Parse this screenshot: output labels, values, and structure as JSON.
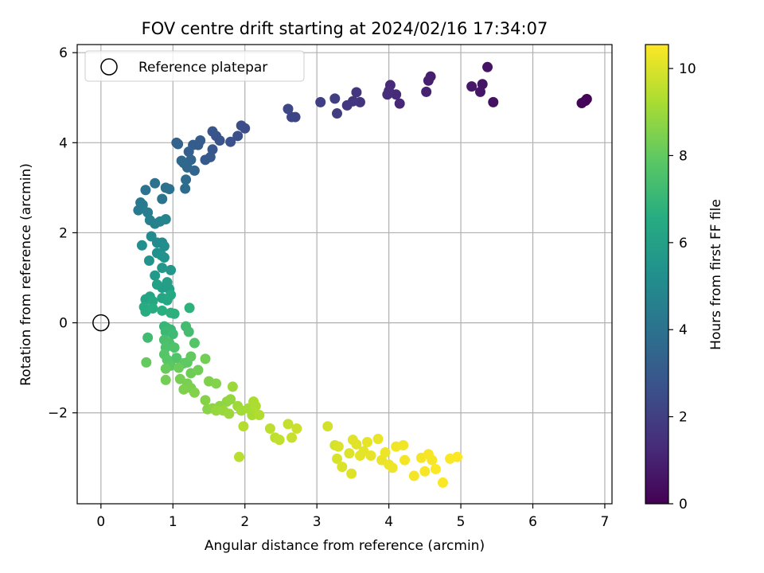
{
  "chart_data": {
    "type": "scatter",
    "title": "FOV centre drift starting at 2024/02/16 17:34:07",
    "xlabel": "Angular distance from reference (arcmin)",
    "ylabel": "Rotation from reference (arcmin)",
    "xlim": [
      -0.33,
      7.1
    ],
    "ylim": [
      -4.02,
      6.18
    ],
    "xticks": [
      0,
      1,
      2,
      3,
      4,
      5,
      6,
      7
    ],
    "yticks": [
      -2,
      0,
      2,
      4,
      6
    ],
    "grid": true,
    "legend": {
      "placement": "upper-left",
      "entries": [
        "Reference platepar"
      ]
    },
    "reference_point": {
      "x": 0,
      "y": 0,
      "label": "Reference platepar"
    },
    "colorbar": {
      "label": "Hours from first FF file",
      "colormap": "viridis",
      "range": [
        0,
        10.55
      ],
      "ticks": [
        0,
        2,
        4,
        6,
        8,
        10
      ]
    },
    "points": [
      [
        6.75,
        4.97,
        0.05
      ],
      [
        6.73,
        4.93,
        0.1
      ],
      [
        6.68,
        4.88,
        0.15
      ],
      [
        5.45,
        4.9,
        0.5
      ],
      [
        5.37,
        5.68,
        0.55
      ],
      [
        5.3,
        5.3,
        0.6
      ],
      [
        5.27,
        5.13,
        0.65
      ],
      [
        5.15,
        5.25,
        0.7
      ],
      [
        4.58,
        5.47,
        0.9
      ],
      [
        4.55,
        5.38,
        0.95
      ],
      [
        4.52,
        5.13,
        1.0
      ],
      [
        4.15,
        4.87,
        1.2
      ],
      [
        4.1,
        5.07,
        1.25
      ],
      [
        4.02,
        5.28,
        1.3
      ],
      [
        4.0,
        5.15,
        1.35
      ],
      [
        3.98,
        5.07,
        1.4
      ],
      [
        3.6,
        4.9,
        1.6
      ],
      [
        3.55,
        5.12,
        1.65
      ],
      [
        3.5,
        4.92,
        1.7
      ],
      [
        3.42,
        4.83,
        1.75
      ],
      [
        3.28,
        4.65,
        1.9
      ],
      [
        3.25,
        4.98,
        1.95
      ],
      [
        3.05,
        4.9,
        2.0
      ],
      [
        2.7,
        4.57,
        2.2
      ],
      [
        2.65,
        4.57,
        2.25
      ],
      [
        2.6,
        4.75,
        2.3
      ],
      [
        2.0,
        4.32,
        2.5
      ],
      [
        1.95,
        4.38,
        2.55
      ],
      [
        1.9,
        4.15,
        2.6
      ],
      [
        1.8,
        4.02,
        2.65
      ],
      [
        1.65,
        4.05,
        2.7
      ],
      [
        1.6,
        4.15,
        2.75
      ],
      [
        1.55,
        4.25,
        2.8
      ],
      [
        1.55,
        3.85,
        2.9
      ],
      [
        1.52,
        3.68,
        2.95
      ],
      [
        1.45,
        3.62,
        3.0
      ],
      [
        1.35,
        3.95,
        3.05
      ],
      [
        1.38,
        4.05,
        3.1
      ],
      [
        1.28,
        3.95,
        3.15
      ],
      [
        1.22,
        3.8,
        3.2
      ],
      [
        1.05,
        4.0,
        3.3
      ],
      [
        1.07,
        3.97,
        3.35
      ],
      [
        1.25,
        3.62,
        3.4
      ],
      [
        1.3,
        3.38,
        3.45
      ],
      [
        1.2,
        3.45,
        3.5
      ],
      [
        1.15,
        3.55,
        3.55
      ],
      [
        1.12,
        3.6,
        3.6
      ],
      [
        1.18,
        3.18,
        3.7
      ],
      [
        1.17,
        2.98,
        3.75
      ],
      [
        0.9,
        3.0,
        3.9
      ],
      [
        0.95,
        2.97,
        3.95
      ],
      [
        0.75,
        3.1,
        4.0
      ],
      [
        0.62,
        2.95,
        4.05
      ],
      [
        0.85,
        2.75,
        4.1
      ],
      [
        0.55,
        2.67,
        4.3
      ],
      [
        0.58,
        2.62,
        4.35
      ],
      [
        0.52,
        2.5,
        4.4
      ],
      [
        0.65,
        2.45,
        4.45
      ],
      [
        0.68,
        2.28,
        4.6
      ],
      [
        0.75,
        2.2,
        4.65
      ],
      [
        0.82,
        2.25,
        4.7
      ],
      [
        0.9,
        2.3,
        4.75
      ],
      [
        0.7,
        1.92,
        5.0
      ],
      [
        0.78,
        1.78,
        5.05
      ],
      [
        0.85,
        1.78,
        5.1
      ],
      [
        0.88,
        1.7,
        5.15
      ],
      [
        0.57,
        1.72,
        5.2
      ],
      [
        0.78,
        1.55,
        5.3
      ],
      [
        0.84,
        1.5,
        5.35
      ],
      [
        0.88,
        1.45,
        5.4
      ],
      [
        0.67,
        1.38,
        5.45
      ],
      [
        0.85,
        1.22,
        5.6
      ],
      [
        0.97,
        1.17,
        5.65
      ],
      [
        0.75,
        1.05,
        5.7
      ],
      [
        0.85,
        0.78,
        5.85
      ],
      [
        0.92,
        0.9,
        5.9
      ],
      [
        0.95,
        0.75,
        5.95
      ],
      [
        0.78,
        0.85,
        6.0
      ],
      [
        0.62,
        0.52,
        6.15
      ],
      [
        0.68,
        0.58,
        6.2
      ],
      [
        0.85,
        0.55,
        6.25
      ],
      [
        0.92,
        0.5,
        6.3
      ],
      [
        0.97,
        0.62,
        6.35
      ],
      [
        0.72,
        0.48,
        6.4
      ],
      [
        0.6,
        0.35,
        6.5
      ],
      [
        0.62,
        0.25,
        6.55
      ],
      [
        0.72,
        0.32,
        6.6
      ],
      [
        0.85,
        0.27,
        6.65
      ],
      [
        0.97,
        0.22,
        6.7
      ],
      [
        1.02,
        0.2,
        6.75
      ],
      [
        1.23,
        0.33,
        6.8
      ],
      [
        0.88,
        -0.08,
        7.0
      ],
      [
        0.92,
        -0.12,
        7.05
      ],
      [
        0.97,
        -0.15,
        7.1
      ],
      [
        0.9,
        -0.2,
        7.15
      ],
      [
        1.0,
        -0.25,
        7.2
      ],
      [
        0.65,
        -0.33,
        7.25
      ],
      [
        1.18,
        -0.08,
        7.3
      ],
      [
        1.22,
        -0.2,
        7.35
      ],
      [
        0.88,
        -0.38,
        7.45
      ],
      [
        0.95,
        -0.45,
        7.5
      ],
      [
        0.9,
        -0.55,
        7.55
      ],
      [
        1.02,
        -0.55,
        7.6
      ],
      [
        1.05,
        -0.78,
        7.65
      ],
      [
        1.3,
        -0.45,
        7.7
      ],
      [
        0.88,
        -0.7,
        7.75
      ],
      [
        0.92,
        -0.82,
        7.8
      ],
      [
        0.97,
        -0.95,
        7.85
      ],
      [
        1.15,
        -0.9,
        7.9
      ],
      [
        1.2,
        -0.88,
        7.95
      ],
      [
        1.25,
        -0.75,
        8.0
      ],
      [
        0.63,
        -0.88,
        8.05
      ],
      [
        0.9,
        -1.02,
        8.1
      ],
      [
        1.08,
        -1.0,
        8.15
      ],
      [
        1.25,
        -1.12,
        8.2
      ],
      [
        1.35,
        -1.05,
        8.25
      ],
      [
        1.45,
        -0.8,
        8.3
      ],
      [
        0.9,
        -1.27,
        8.3
      ],
      [
        1.1,
        -1.25,
        8.35
      ],
      [
        1.2,
        -1.35,
        8.4
      ],
      [
        1.25,
        -1.45,
        8.45
      ],
      [
        1.15,
        -1.48,
        8.5
      ],
      [
        1.3,
        -1.55,
        8.55
      ],
      [
        1.5,
        -1.3,
        8.5
      ],
      [
        1.6,
        -1.35,
        8.55
      ],
      [
        1.45,
        -1.72,
        8.6
      ],
      [
        1.48,
        -1.92,
        8.65
      ],
      [
        1.55,
        -1.9,
        8.7
      ],
      [
        1.65,
        -1.85,
        8.75
      ],
      [
        1.75,
        -1.75,
        8.8
      ],
      [
        1.8,
        -1.7,
        8.85
      ],
      [
        1.6,
        -1.95,
        8.9
      ],
      [
        1.7,
        -1.95,
        8.95
      ],
      [
        1.78,
        -2.02,
        9.0
      ],
      [
        1.83,
        -1.42,
        9.0
      ],
      [
        1.9,
        -1.85,
        9.05
      ],
      [
        1.95,
        -1.95,
        9.1
      ],
      [
        2.05,
        -1.9,
        9.15
      ],
      [
        2.1,
        -2.05,
        9.2
      ],
      [
        2.12,
        -1.75,
        9.25
      ],
      [
        2.15,
        -1.85,
        9.3
      ],
      [
        2.2,
        -2.05,
        9.35
      ],
      [
        1.98,
        -2.3,
        9.4
      ],
      [
        1.92,
        -2.98,
        9.45
      ],
      [
        2.35,
        -2.35,
        9.5
      ],
      [
        2.42,
        -2.55,
        9.55
      ],
      [
        2.48,
        -2.6,
        9.6
      ],
      [
        2.6,
        -2.25,
        9.65
      ],
      [
        2.65,
        -2.55,
        9.7
      ],
      [
        2.72,
        -2.35,
        9.75
      ],
      [
        3.15,
        -2.3,
        9.85
      ],
      [
        3.25,
        -2.72,
        9.9
      ],
      [
        3.28,
        -3.02,
        9.95
      ],
      [
        3.3,
        -2.75,
        10.0
      ],
      [
        3.35,
        -3.2,
        10.0
      ],
      [
        3.45,
        -2.9,
        10.05
      ],
      [
        3.48,
        -3.35,
        10.05
      ],
      [
        3.5,
        -2.6,
        10.1
      ],
      [
        3.55,
        -2.7,
        10.1
      ],
      [
        3.6,
        -2.95,
        10.15
      ],
      [
        3.65,
        -2.85,
        10.15
      ],
      [
        3.7,
        -2.65,
        10.2
      ],
      [
        3.75,
        -2.95,
        10.2
      ],
      [
        3.85,
        -2.58,
        10.25
      ],
      [
        3.9,
        -3.05,
        10.25
      ],
      [
        3.95,
        -2.88,
        10.3
      ],
      [
        4.0,
        -3.15,
        10.3
      ],
      [
        4.05,
        -3.22,
        10.3
      ],
      [
        4.1,
        -2.75,
        10.35
      ],
      [
        4.2,
        -2.72,
        10.35
      ],
      [
        4.22,
        -3.05,
        10.4
      ],
      [
        4.35,
        -3.4,
        10.4
      ],
      [
        4.45,
        -3.0,
        10.4
      ],
      [
        4.5,
        -3.3,
        10.45
      ],
      [
        4.55,
        -2.92,
        10.45
      ],
      [
        4.6,
        -3.05,
        10.45
      ],
      [
        4.65,
        -3.25,
        10.5
      ],
      [
        4.75,
        -3.55,
        10.5
      ],
      [
        4.85,
        -3.02,
        10.5
      ],
      [
        4.95,
        -2.98,
        10.55
      ]
    ]
  }
}
